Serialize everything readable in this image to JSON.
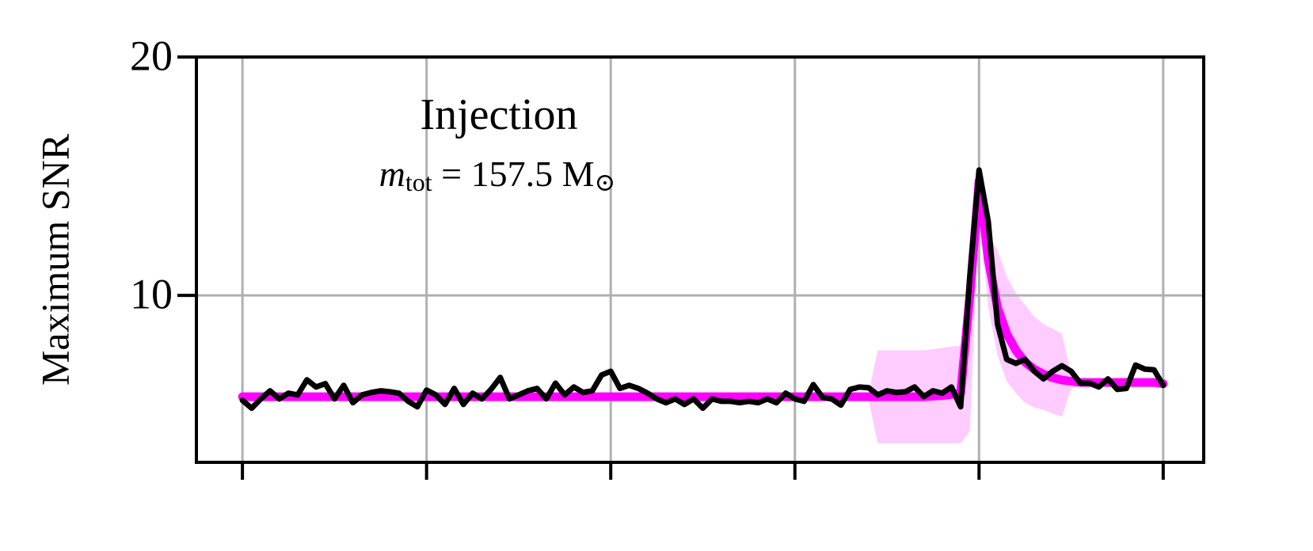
{
  "chart_data": {
    "type": "line",
    "ylabel": "Maximum SNR",
    "annotation": "Injection",
    "mass_label": {
      "symbol": "m",
      "subscript": "tot",
      "text": " = 157.5 M",
      "unit_subscript": "⊙"
    },
    "xlim": [
      -0.25,
      5.22
    ],
    "xticks": [
      0,
      1,
      2,
      3,
      4,
      5
    ],
    "ylim": [
      3,
      20
    ],
    "yticks": [
      10,
      20
    ],
    "grid": true,
    "x": [
      0,
      0.05,
      0.1,
      0.15,
      0.2,
      0.25,
      0.3,
      0.35,
      0.4,
      0.45,
      0.5,
      0.55,
      0.6,
      0.65,
      0.7,
      0.75,
      0.8,
      0.85,
      0.9,
      0.95,
      1,
      1.05,
      1.1,
      1.15,
      1.2,
      1.25,
      1.3,
      1.35,
      1.4,
      1.45,
      1.5,
      1.55,
      1.6,
      1.65,
      1.7,
      1.75,
      1.8,
      1.85,
      1.9,
      1.95,
      2,
      2.05,
      2.1,
      2.15,
      2.2,
      2.25,
      2.3,
      2.35,
      2.4,
      2.45,
      2.5,
      2.55,
      2.6,
      2.65,
      2.7,
      2.75,
      2.8,
      2.85,
      2.9,
      2.95,
      3,
      3.05,
      3.1,
      3.15,
      3.2,
      3.25,
      3.3,
      3.35,
      3.4,
      3.45,
      3.5,
      3.55,
      3.6,
      3.65,
      3.7,
      3.75,
      3.8,
      3.85,
      3.9,
      3.95,
      4,
      4.05,
      4.1,
      4.15,
      4.2,
      4.25,
      4.3,
      4.35,
      4.4,
      4.45,
      4.5,
      4.55,
      4.6,
      4.65,
      4.7,
      4.75,
      4.8,
      4.85,
      4.9,
      4.95,
      5
    ],
    "band": {
      "color": "#ffccff",
      "lower": [
        5.6,
        5.6,
        5.6,
        5.6,
        5.6,
        5.6,
        5.6,
        5.6,
        5.6,
        5.6,
        5.6,
        5.6,
        5.6,
        5.6,
        5.6,
        5.6,
        5.6,
        5.6,
        5.6,
        5.6,
        5.6,
        5.6,
        5.6,
        5.6,
        5.6,
        5.6,
        5.6,
        5.6,
        5.6,
        5.6,
        5.6,
        5.6,
        5.6,
        5.6,
        5.6,
        5.6,
        5.6,
        5.6,
        5.6,
        5.6,
        5.6,
        5.6,
        5.6,
        5.6,
        5.6,
        5.6,
        5.6,
        5.6,
        5.6,
        5.6,
        5.6,
        5.6,
        5.6,
        5.6,
        5.6,
        5.6,
        5.6,
        5.6,
        5.6,
        5.6,
        5.6,
        5.6,
        5.6,
        5.6,
        5.6,
        5.6,
        5.6,
        5.6,
        5.6,
        3.8,
        3.8,
        3.8,
        3.8,
        3.8,
        3.8,
        3.8,
        3.8,
        3.8,
        3.8,
        4.3,
        13.5,
        9.5,
        7.5,
        6.4,
        5.9,
        5.5,
        5.3,
        5.2,
        5.05,
        4.9,
        6.1,
        6.2,
        6.2,
        6.2,
        6.2,
        6.2,
        6.2,
        6.2,
        6.2,
        6.2,
        6.2
      ],
      "upper": [
        5.9,
        5.9,
        5.9,
        5.9,
        5.9,
        5.9,
        5.9,
        5.9,
        5.9,
        5.9,
        5.9,
        5.9,
        5.9,
        5.9,
        5.9,
        5.9,
        5.9,
        5.9,
        5.9,
        5.9,
        5.9,
        5.9,
        5.9,
        5.9,
        5.9,
        5.9,
        5.9,
        5.9,
        5.9,
        5.9,
        5.9,
        5.9,
        5.9,
        5.9,
        5.9,
        5.9,
        5.9,
        5.9,
        5.9,
        5.9,
        5.9,
        5.9,
        5.9,
        5.9,
        5.9,
        5.9,
        5.9,
        5.9,
        5.9,
        5.9,
        5.9,
        5.9,
        5.9,
        5.9,
        5.9,
        5.9,
        5.9,
        5.9,
        5.9,
        5.9,
        5.9,
        5.9,
        5.9,
        5.9,
        5.9,
        5.9,
        5.9,
        5.9,
        5.9,
        7.7,
        7.7,
        7.7,
        7.7,
        7.7,
        7.7,
        7.75,
        7.8,
        7.85,
        7.9,
        10.4,
        15.9,
        12.6,
        11.9,
        10.8,
        10.1,
        9.6,
        9.1,
        8.8,
        8.6,
        8.4,
        6.7,
        6.5,
        6.5,
        6.5,
        6.5,
        6.5,
        6.5,
        6.5,
        6.5,
        6.5,
        6.5
      ]
    },
    "series": [
      {
        "color": "#ff00ff",
        "values": [
          5.75,
          5.75,
          5.75,
          5.75,
          5.75,
          5.75,
          5.75,
          5.75,
          5.75,
          5.75,
          5.75,
          5.75,
          5.75,
          5.75,
          5.75,
          5.75,
          5.75,
          5.75,
          5.75,
          5.75,
          5.75,
          5.75,
          5.75,
          5.75,
          5.75,
          5.75,
          5.75,
          5.75,
          5.75,
          5.75,
          5.75,
          5.75,
          5.75,
          5.75,
          5.75,
          5.75,
          5.75,
          5.75,
          5.75,
          5.75,
          5.75,
          5.75,
          5.75,
          5.75,
          5.75,
          5.75,
          5.75,
          5.75,
          5.75,
          5.75,
          5.75,
          5.75,
          5.75,
          5.75,
          5.75,
          5.75,
          5.75,
          5.75,
          5.75,
          5.75,
          5.75,
          5.75,
          5.75,
          5.75,
          5.75,
          5.75,
          5.75,
          5.75,
          5.75,
          5.75,
          5.75,
          5.75,
          5.75,
          5.75,
          5.75,
          5.78,
          5.8,
          5.85,
          5.9,
          10,
          14.8,
          11.5,
          9.5,
          8.4,
          7.7,
          7.2,
          6.9,
          6.7,
          6.55,
          6.45,
          6.4,
          6.35,
          6.35,
          6.35,
          6.35,
          6.35,
          6.35,
          6.35,
          6.35,
          6.35,
          6.3
        ]
      },
      {
        "color": "#000000",
        "values": [
          5.6,
          5.27,
          5.66,
          6.0,
          5.66,
          5.9,
          5.83,
          6.46,
          6.16,
          6.3,
          5.66,
          6.23,
          5.5,
          5.83,
          5.93,
          6.0,
          5.96,
          5.9,
          5.56,
          5.33,
          6.03,
          5.83,
          5.43,
          6.1,
          5.43,
          5.9,
          5.66,
          6.06,
          6.56,
          5.66,
          5.83,
          6.0,
          6.1,
          5.66,
          6.32,
          5.83,
          6.16,
          5.93,
          6.0,
          6.66,
          6.82,
          6.1,
          6.23,
          6.1,
          5.9,
          5.66,
          5.5,
          5.66,
          5.43,
          5.66,
          5.27,
          5.66,
          5.56,
          5.56,
          5.5,
          5.56,
          5.5,
          5.66,
          5.5,
          5.9,
          5.66,
          5.56,
          6.26,
          5.73,
          5.66,
          5.4,
          6.06,
          6.16,
          6.13,
          5.83,
          6.0,
          5.93,
          5.96,
          6.16,
          5.76,
          6.0,
          5.9,
          6.16,
          5.33,
          10.8,
          15.26,
          13.1,
          8.8,
          7.32,
          7.15,
          7.32,
          6.82,
          6.5,
          6.82,
          7.05,
          6.82,
          6.32,
          6.32,
          6.16,
          6.5,
          6.06,
          6.1,
          7.08,
          6.91,
          6.88,
          6.23
        ]
      }
    ]
  }
}
